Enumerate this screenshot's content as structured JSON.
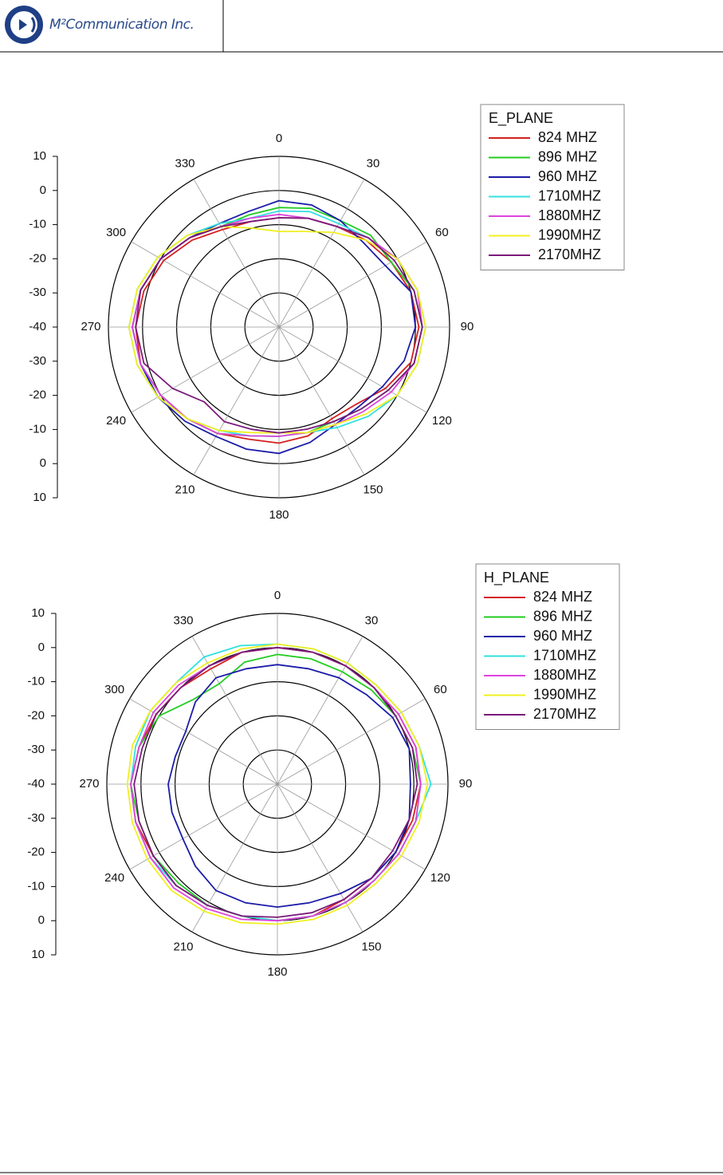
{
  "header": {
    "company": "M²Communication Inc."
  },
  "chart_data": [
    {
      "type": "polar",
      "legend_title": "E_PLANE",
      "theta": [
        0,
        15,
        30,
        45,
        60,
        75,
        90,
        105,
        120,
        135,
        150,
        165,
        180,
        195,
        210,
        225,
        240,
        255,
        270,
        285,
        300,
        315,
        330,
        345
      ],
      "thetaticks": [
        0,
        30,
        60,
        90,
        120,
        150,
        180,
        210,
        240,
        270,
        300,
        330
      ],
      "rlim": [
        -40,
        10
      ],
      "rticks": [
        -40,
        -30,
        -20,
        -10,
        0,
        10
      ],
      "series": [
        {
          "name": "824 MHZ",
          "color": "#d42020",
          "values": [
            -8,
            -7,
            -6,
            -4,
            -2,
            0,
            1,
            0,
            -4,
            -8,
            -9,
            -7,
            -6,
            -6,
            -4,
            -2,
            0,
            2,
            2,
            1,
            -1,
            -4,
            -7,
            -8
          ]
        },
        {
          "name": "896 MHZ",
          "color": "#22cc22",
          "values": [
            -5,
            -4,
            -4,
            -2,
            -2,
            1,
            2,
            1,
            -3,
            -6,
            -8,
            -8,
            -8,
            -7,
            -4,
            -2,
            0,
            2,
            3,
            2,
            0,
            -3,
            -6,
            -6
          ]
        },
        {
          "name": "960 MHZ",
          "color": "#1c1ca8",
          "values": [
            -3,
            -3,
            -4,
            -5,
            -4,
            0,
            0,
            -2,
            -5,
            -7,
            -7,
            -5,
            -3,
            -3,
            -3,
            -1,
            1,
            2,
            3,
            2,
            0,
            -3,
            -5,
            -5
          ]
        },
        {
          "name": "1710MHZ",
          "color": "#33e0e0",
          "values": [
            -6,
            -5,
            -5,
            -3,
            0,
            2,
            3,
            2,
            0,
            -3,
            -6,
            -8,
            -8,
            -7,
            -5,
            -2,
            1,
            3,
            4,
            3,
            1,
            -2,
            -5,
            -7
          ]
        },
        {
          "name": "1880MHZ",
          "color": "#dd44dd",
          "values": [
            -7,
            -7,
            -6,
            -3,
            0,
            2,
            2,
            1,
            -2,
            -5,
            -7,
            -8,
            -8,
            -7,
            -4,
            -2,
            0,
            2,
            3,
            2,
            0,
            -3,
            -6,
            -7
          ]
        },
        {
          "name": "1990MHZ",
          "color": "#f0f020",
          "values": [
            -12,
            -11,
            -8,
            -4,
            0,
            2,
            3,
            2,
            0,
            -4,
            -7,
            -8,
            -9,
            -8,
            -5,
            -2,
            1,
            3,
            4,
            3,
            1,
            -2,
            -6,
            -10
          ]
        },
        {
          "name": "2170MHZ",
          "color": "#7a1a7a",
          "values": [
            -8,
            -7,
            -6,
            -3,
            -1,
            1,
            2,
            1,
            -3,
            -6,
            -8,
            -9,
            -9,
            -9,
            -8,
            -9,
            -4,
            1,
            2,
            2,
            0,
            -3,
            -6,
            -8
          ]
        }
      ]
    },
    {
      "type": "polar",
      "legend_title": "H_PLANE",
      "theta": [
        0,
        15,
        30,
        45,
        60,
        75,
        90,
        105,
        120,
        135,
        150,
        165,
        180,
        195,
        210,
        225,
        240,
        255,
        270,
        285,
        300,
        315,
        330,
        345
      ],
      "thetaticks": [
        0,
        30,
        60,
        90,
        120,
        150,
        180,
        210,
        240,
        270,
        300,
        330
      ],
      "rlim": [
        -40,
        10
      ],
      "rticks": [
        -40,
        -30,
        -20,
        -10,
        0,
        10
      ],
      "series": [
        {
          "name": "824 MHZ",
          "color": "#d42020",
          "values": [
            0,
            0,
            0,
            0,
            1,
            2,
            2,
            1,
            0,
            -1,
            -1,
            0,
            0,
            0,
            1,
            2,
            2,
            3,
            3,
            2,
            1,
            0,
            -1,
            0
          ]
        },
        {
          "name": "896 MHZ",
          "color": "#22cc22",
          "values": [
            -2,
            -2,
            -2,
            -1,
            0,
            1,
            2,
            2,
            1,
            0,
            0,
            0,
            0,
            0,
            1,
            1,
            2,
            2,
            3,
            2,
            0,
            -5,
            -6,
            -3
          ]
        },
        {
          "name": "960 MHZ",
          "color": "#1c1ca8",
          "values": [
            -5,
            -5,
            -4,
            -3,
            -1,
            0,
            -1,
            0,
            0,
            -1,
            -3,
            -4,
            -4,
            -4,
            -4,
            -6,
            -8,
            -8,
            -8,
            -9,
            -9,
            -6,
            -4,
            -5
          ]
        },
        {
          "name": "1710MHZ",
          "color": "#33e0e0",
          "values": [
            1,
            1,
            1,
            1,
            2,
            3,
            5,
            2,
            1,
            0,
            0,
            0,
            0,
            0,
            1,
            2,
            3,
            3,
            3,
            3,
            3,
            2,
            3,
            2
          ]
        },
        {
          "name": "1880MHZ",
          "color": "#dd44dd",
          "values": [
            0,
            0,
            0,
            0,
            1,
            2,
            2,
            2,
            1,
            0,
            0,
            0,
            0,
            1,
            2,
            3,
            3,
            3,
            3,
            2,
            2,
            1,
            0,
            0
          ]
        },
        {
          "name": "1990MHZ",
          "color": "#f0f020",
          "values": [
            1,
            1,
            1,
            1,
            2,
            3,
            4,
            3,
            2,
            1,
            1,
            1,
            1,
            2,
            3,
            4,
            4,
            4,
            4,
            4,
            3,
            2,
            1,
            1
          ]
        },
        {
          "name": "2170MHZ",
          "color": "#7a1a7a",
          "values": [
            0,
            0,
            0,
            0,
            0,
            1,
            1,
            0,
            -1,
            -1,
            -1,
            -1,
            -1,
            0,
            1,
            2,
            2,
            2,
            2,
            1,
            1,
            0,
            0,
            0
          ]
        }
      ]
    }
  ]
}
